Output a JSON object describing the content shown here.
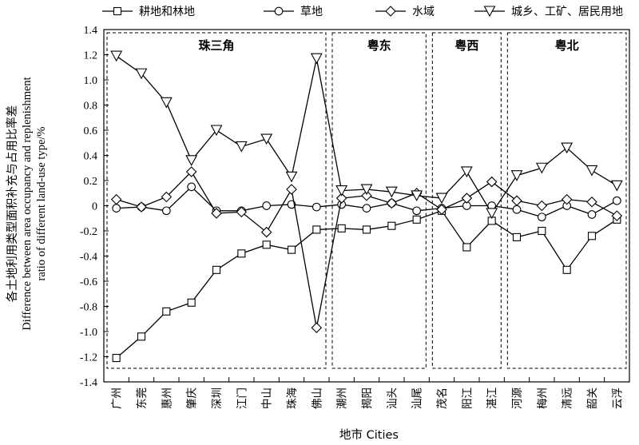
{
  "chart_data": {
    "type": "line",
    "legend_position": "top",
    "xlabel": "地市 Cities",
    "ylabel_lines": [
      "各土地利用类型面积补充与占用比率差",
      "Difference between area occupancy and replenishment",
      "ratio of different land-use type/%"
    ],
    "ylim": [
      -1.4,
      1.4
    ],
    "yticks": [
      "1.4",
      "1.2",
      "1.0",
      "0.8",
      "0.6",
      "0.4",
      "0.2",
      "0",
      "-0.2",
      "-0.4",
      "-0.6",
      "-0.8",
      "-1.0",
      "-1.2",
      "-1.4"
    ],
    "categories": [
      "广州",
      "东莞",
      "惠州",
      "肇庆",
      "深圳",
      "江门",
      "中山",
      "珠海",
      "佛山",
      "潮州",
      "揭阳",
      "汕头",
      "汕尾",
      "茂名",
      "阳江",
      "湛江",
      "河源",
      "梅州",
      "清远",
      "韶关",
      "云浮"
    ],
    "regions": [
      {
        "name": "珠三角",
        "start": 0,
        "end": 8
      },
      {
        "name": "粤东",
        "start": 9,
        "end": 12
      },
      {
        "name": "粤西",
        "start": 13,
        "end": 15
      },
      {
        "name": "粤北",
        "start": 16,
        "end": 20
      }
    ],
    "series": [
      {
        "name": "耕地和林地",
        "marker": "square",
        "values": [
          -1.21,
          -1.04,
          -0.84,
          -0.77,
          -0.51,
          -0.38,
          -0.31,
          -0.35,
          -0.19,
          -0.18,
          -0.19,
          -0.16,
          -0.11,
          -0.04,
          -0.33,
          -0.12,
          -0.25,
          -0.2,
          -0.51,
          -0.24,
          -0.11
        ]
      },
      {
        "name": "草地",
        "marker": "circle",
        "values": [
          -0.02,
          -0.01,
          -0.04,
          0.15,
          -0.04,
          -0.04,
          0.0,
          0.01,
          -0.01,
          0.01,
          -0.02,
          0.02,
          -0.04,
          -0.02,
          0.0,
          0.0,
          -0.03,
          -0.09,
          0.0,
          -0.07,
          0.04
        ]
      },
      {
        "name": "水域",
        "marker": "diamond",
        "values": [
          0.05,
          -0.01,
          0.07,
          0.27,
          -0.06,
          -0.05,
          -0.21,
          0.13,
          -0.97,
          0.06,
          0.08,
          0.02,
          0.1,
          -0.03,
          0.06,
          0.19,
          0.04,
          0.0,
          0.05,
          0.03,
          -0.08
        ]
      },
      {
        "name": "城乡、工矿、居民用地",
        "marker": "triangle-down",
        "values": [
          1.19,
          1.05,
          0.82,
          0.36,
          0.6,
          0.47,
          0.53,
          0.23,
          1.17,
          0.12,
          0.13,
          0.11,
          0.08,
          0.06,
          0.27,
          -0.06,
          0.24,
          0.3,
          0.46,
          0.28,
          0.16
        ]
      }
    ]
  }
}
